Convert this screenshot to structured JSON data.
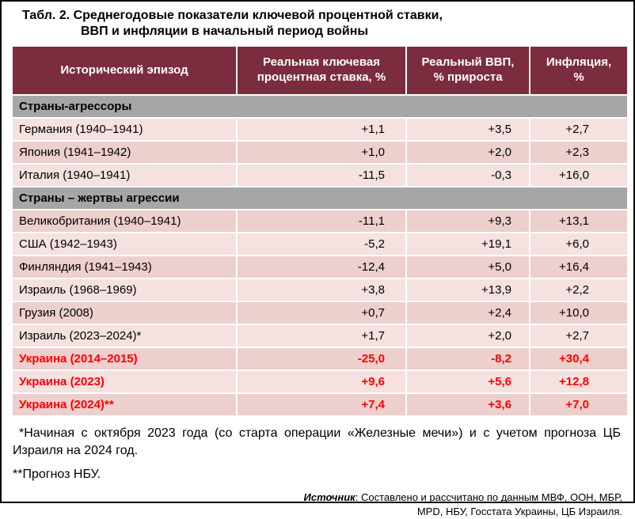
{
  "title": {
    "line1": "Табл. 2. Среднегодовые показатели ключевой процентной ставки,",
    "line2": "ВВП и инфляции в начальный период войны"
  },
  "table": {
    "headers": [
      "Исторический эпизод",
      "Реальная ключевая\nпроцентная ставка, %",
      "Реальный ВВП,\n% прироста",
      "Инфляция,\n%"
    ],
    "rows": [
      {
        "type": "section",
        "label": "Страны-агрессоры"
      },
      {
        "type": "data",
        "label": "Германия (1940–1941)",
        "rate": "+1,1",
        "gdp": "+3,5",
        "inflation": "+2,7"
      },
      {
        "type": "data",
        "label": "Япония (1941–1942)",
        "rate": "+1,0",
        "gdp": "+2,0",
        "inflation": "+2,3"
      },
      {
        "type": "data",
        "label": "Италия (1940–1941)",
        "rate": "-11,5",
        "gdp": "-0,3",
        "inflation": "+16,0"
      },
      {
        "type": "section",
        "label": "Страны – жертвы агрессии"
      },
      {
        "type": "data",
        "label": "Великобритания (1940–1941)",
        "rate": "-11,1",
        "gdp": "+9,3",
        "inflation": "+13,1"
      },
      {
        "type": "data",
        "label": "США (1942–1943)",
        "rate": "-5,2",
        "gdp": "+19,1",
        "inflation": "+6,0"
      },
      {
        "type": "data",
        "label": "Финляндия (1941–1943)",
        "rate": "-12,4",
        "gdp": "+5,0",
        "inflation": "+16,4"
      },
      {
        "type": "data",
        "label": "Израиль (1968–1969)",
        "rate": "+3,8",
        "gdp": "+13,9",
        "inflation": "+2,2"
      },
      {
        "type": "data",
        "label": "Грузия (2008)",
        "rate": "+0,7",
        "gdp": "+2,4",
        "inflation": "+10,0"
      },
      {
        "type": "data",
        "label": "Израиль (2023–2024)*",
        "rate": "+1,7",
        "gdp": "+2,0",
        "inflation": "+2,7"
      },
      {
        "type": "data",
        "label": "Украина (2014–2015)",
        "rate": "-25,0",
        "gdp": "-8,2",
        "inflation": "+30,4",
        "highlight": true
      },
      {
        "type": "data",
        "label": "Украина (2023)",
        "rate": "+9,6",
        "gdp": "+5,6",
        "inflation": "+12,8",
        "highlight": true
      },
      {
        "type": "data",
        "label": "Украина (2024)**",
        "rate": "+7,4",
        "gdp": "+3,6",
        "inflation": "+7,0",
        "highlight": true
      }
    ]
  },
  "footnotes": {
    "note1": "*Начиная с октября 2023 года (со старта операции «Железные мечи») и с учетом прогноза ЦБ Израиля на 2024 год.",
    "note2": "**Прогноз НБУ."
  },
  "source": {
    "label": "Источник",
    "text": ": Составлено и рассчитано по данным МВФ, ООН, МБР, MPD, НБУ, Госстата Украины, ЦБ Израиля."
  },
  "colors": {
    "header_bg": "#7b2c3f",
    "section_bg": "#a6a6a6",
    "row_light": "#f4e1e0",
    "row_dark": "#edcfce",
    "highlight_text": "#ff0000"
  }
}
